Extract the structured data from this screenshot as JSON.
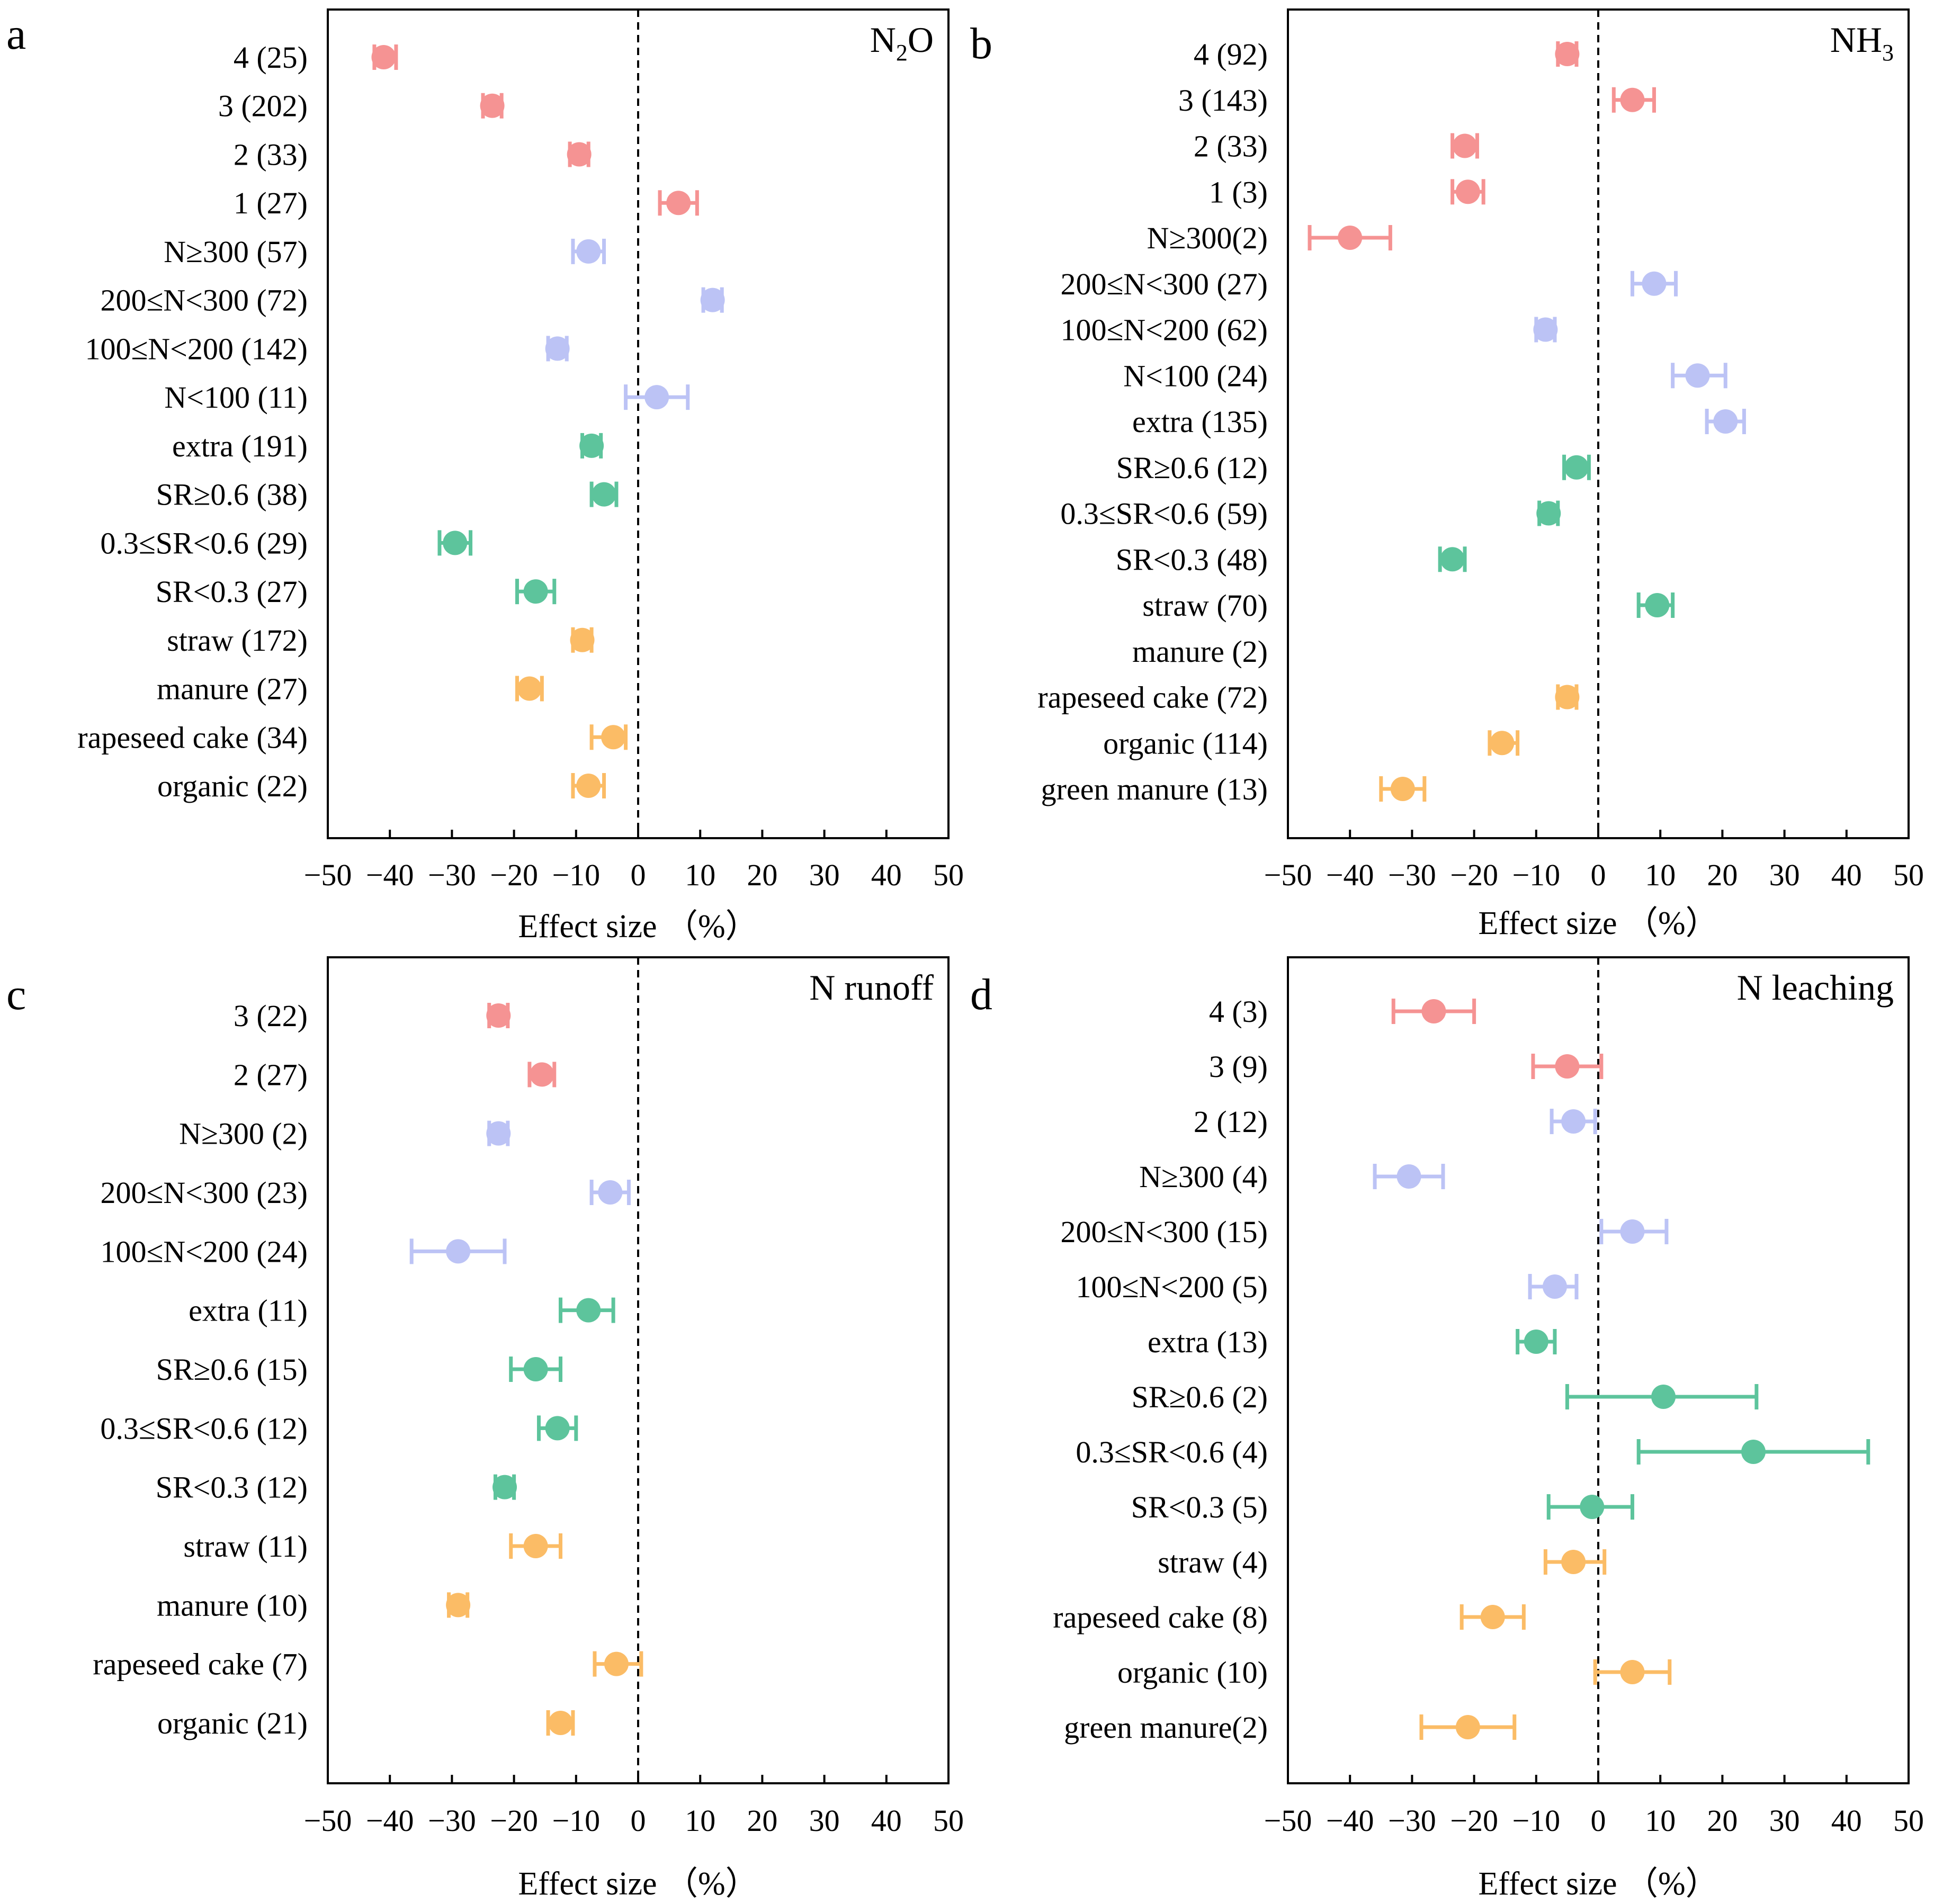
{
  "figure": {
    "colors": {
      "group1": "#f59393",
      "group2": "#bcc3f5",
      "group3": "#5dc49c",
      "group4": "#fbbc66",
      "axis": "#000000"
    }
  },
  "chart_data": [
    {
      "type": "forest",
      "panel": "a",
      "title": "N₂O",
      "title_parts": {
        "main": "N",
        "sub": "2",
        "tail": "O"
      },
      "xlabel": "Effect size （%）",
      "xlim": [
        -50,
        50
      ],
      "xticks": [
        "−50",
        "−40",
        "−30",
        "−20",
        "−10",
        "0",
        "10",
        "20",
        "30",
        "40",
        "50"
      ],
      "xtick_values": [
        -50,
        -40,
        -30,
        -20,
        -10,
        0,
        10,
        20,
        30,
        40,
        50
      ],
      "reference_line": 0,
      "rows": [
        {
          "label": "4 (25)",
          "group": 1,
          "mean": -41,
          "lo": -42.5,
          "hi": -39
        },
        {
          "label": "3 (202)",
          "group": 1,
          "mean": -23.5,
          "lo": -25,
          "hi": -22
        },
        {
          "label": "2 (33)",
          "group": 1,
          "mean": -9.5,
          "lo": -11,
          "hi": -8
        },
        {
          "label": "1 (27)",
          "group": 1,
          "mean": 6.5,
          "lo": 3.5,
          "hi": 9.5
        },
        {
          "label": "N≥300 (57)",
          "group": 2,
          "mean": -8,
          "lo": -10.5,
          "hi": -5.5
        },
        {
          "label": "200≤N<300 (72)",
          "group": 2,
          "mean": 12,
          "lo": 10.5,
          "hi": 13.5
        },
        {
          "label": "100≤N<200 (142)",
          "group": 2,
          "mean": -13,
          "lo": -14.5,
          "hi": -11.5
        },
        {
          "label": "N<100 (11)",
          "group": 2,
          "mean": 3,
          "lo": -2,
          "hi": 8
        },
        {
          "label": "extra (191)",
          "group": 3,
          "mean": -7.5,
          "lo": -9,
          "hi": -6
        },
        {
          "label": "SR≥0.6 (38)",
          "group": 3,
          "mean": -5.5,
          "lo": -7.5,
          "hi": -3.5
        },
        {
          "label": "0.3≤SR<0.6 (29)",
          "group": 3,
          "mean": -29.5,
          "lo": -32,
          "hi": -27
        },
        {
          "label": "SR<0.3 (27)",
          "group": 3,
          "mean": -16.5,
          "lo": -19.5,
          "hi": -13.5
        },
        {
          "label": "straw (172)",
          "group": 4,
          "mean": -9,
          "lo": -10.5,
          "hi": -7.5
        },
        {
          "label": "manure (27)",
          "group": 4,
          "mean": -17.5,
          "lo": -19.5,
          "hi": -15.5
        },
        {
          "label": "rapeseed cake (34)",
          "group": 4,
          "mean": -4,
          "lo": -7.5,
          "hi": -2
        },
        {
          "label": "organic (22)",
          "group": 4,
          "mean": -8,
          "lo": -10.5,
          "hi": -5.5
        }
      ]
    },
    {
      "type": "forest",
      "panel": "b",
      "title": "NH₃",
      "title_parts": {
        "main": "NH",
        "sub": "3",
        "tail": ""
      },
      "xlabel": "Effect size （%）",
      "xlim": [
        -50,
        50
      ],
      "xticks": [
        "−50",
        "−40",
        "−30",
        "−20",
        "−10",
        "0",
        "10",
        "20",
        "30",
        "40",
        "50"
      ],
      "xtick_values": [
        -50,
        -40,
        -30,
        -20,
        -10,
        0,
        10,
        20,
        30,
        40,
        50
      ],
      "reference_line": 0,
      "rows": [
        {
          "label": "4 (92)",
          "group": 1,
          "mean": -5,
          "lo": -6.5,
          "hi": -3.5
        },
        {
          "label": "3 (143)",
          "group": 1,
          "mean": 5.5,
          "lo": 2.5,
          "hi": 9
        },
        {
          "label": "2 (33)",
          "group": 1,
          "mean": -21.5,
          "lo": -23.5,
          "hi": -19.5
        },
        {
          "label": "1 (3)",
          "group": 1,
          "mean": -21,
          "lo": -23.5,
          "hi": -18.5
        },
        {
          "label": "N≥300(2)",
          "group": 1,
          "mean": -40,
          "lo": -46.5,
          "hi": -33.5
        },
        {
          "label": "200≤N<300 (27)",
          "group": 2,
          "mean": 9,
          "lo": 5.5,
          "hi": 12.5
        },
        {
          "label": "100≤N<200 (62)",
          "group": 2,
          "mean": -8.5,
          "lo": -10,
          "hi": -7
        },
        {
          "label": "N<100 (24)",
          "group": 2,
          "mean": 16,
          "lo": 12,
          "hi": 20.5
        },
        {
          "label": "extra (135)",
          "group": 2,
          "mean": 20.5,
          "lo": 17.5,
          "hi": 23.5
        },
        {
          "label": "SR≥0.6 (12)",
          "group": 3,
          "mean": -3.5,
          "lo": -5.5,
          "hi": -1.5
        },
        {
          "label": "0.3≤SR<0.6 (59)",
          "group": 3,
          "mean": -8,
          "lo": -9.5,
          "hi": -6.5
        },
        {
          "label": "SR<0.3 (48)",
          "group": 3,
          "mean": -23.5,
          "lo": -25.5,
          "hi": -21.5
        },
        {
          "label": "straw (70)",
          "group": 3,
          "mean": 9.5,
          "lo": 6.5,
          "hi": 12
        },
        {
          "label": "manure (2)",
          "group": 0,
          "mean": null,
          "lo": null,
          "hi": null
        },
        {
          "label": "rapeseed cake (72)",
          "group": 4,
          "mean": -5,
          "lo": -6.5,
          "hi": -3.5
        },
        {
          "label": "organic (114)",
          "group": 4,
          "mean": -15.5,
          "lo": -17.5,
          "hi": -13
        },
        {
          "label": "green manure (13)",
          "group": 4,
          "mean": -31.5,
          "lo": -35,
          "hi": -28
        }
      ]
    },
    {
      "type": "forest",
      "panel": "c",
      "title": "N runoff",
      "title_parts": {
        "main": "N runoff",
        "sub": "",
        "tail": ""
      },
      "xlabel": "Effect size （%）",
      "xlim": [
        -50,
        50
      ],
      "xticks": [
        "−50",
        "−40",
        "−30",
        "−20",
        "−10",
        "0",
        "10",
        "20",
        "30",
        "40",
        "50"
      ],
      "xtick_values": [
        -50,
        -40,
        -30,
        -20,
        -10,
        0,
        10,
        20,
        30,
        40,
        50
      ],
      "reference_line": 0,
      "rows": [
        {
          "label": "3 (22)",
          "group": 1,
          "mean": -22.5,
          "lo": -24,
          "hi": -21
        },
        {
          "label": "2 (27)",
          "group": 1,
          "mean": -15.5,
          "lo": -17.5,
          "hi": -13.5
        },
        {
          "label": "N≥300 (2)",
          "group": 2,
          "mean": -22.5,
          "lo": -24,
          "hi": -21
        },
        {
          "label": "200≤N<300 (23)",
          "group": 2,
          "mean": -4.5,
          "lo": -7.5,
          "hi": -1.5
        },
        {
          "label": "100≤N<200 (24)",
          "group": 2,
          "mean": -29,
          "lo": -36.5,
          "hi": -21.5
        },
        {
          "label": "extra (11)",
          "group": 3,
          "mean": -8,
          "lo": -12.5,
          "hi": -4
        },
        {
          "label": "SR≥0.6 (15)",
          "group": 3,
          "mean": -16.5,
          "lo": -20.5,
          "hi": -12.5
        },
        {
          "label": "0.3≤SR<0.6 (12)",
          "group": 3,
          "mean": -13,
          "lo": -16,
          "hi": -10
        },
        {
          "label": "SR<0.3 (12)",
          "group": 3,
          "mean": -21.5,
          "lo": -23,
          "hi": -20
        },
        {
          "label": "straw (11)",
          "group": 4,
          "mean": -16.5,
          "lo": -20.5,
          "hi": -12.5
        },
        {
          "label": "manure (10)",
          "group": 4,
          "mean": -29,
          "lo": -30.5,
          "hi": -27.5
        },
        {
          "label": "rapeseed cake (7)",
          "group": 4,
          "mean": -3.5,
          "lo": -7,
          "hi": 0.5
        },
        {
          "label": "organic (21)",
          "group": 4,
          "mean": -12.5,
          "lo": -14.5,
          "hi": -10.5
        }
      ]
    },
    {
      "type": "forest",
      "panel": "d",
      "title": "N leaching",
      "title_parts": {
        "main": "N leaching",
        "sub": "",
        "tail": ""
      },
      "xlabel": "Effect size （%）",
      "xlim": [
        -50,
        50
      ],
      "xticks": [
        "−50",
        "−40",
        "−30",
        "−20",
        "−10",
        "0",
        "10",
        "20",
        "30",
        "40",
        "50"
      ],
      "xtick_values": [
        -50,
        -40,
        -30,
        -20,
        -10,
        0,
        10,
        20,
        30,
        40,
        50
      ],
      "reference_line": 0,
      "rows": [
        {
          "label": "4 (3)",
          "group": 1,
          "mean": -26.5,
          "lo": -33,
          "hi": -20
        },
        {
          "label": "3 (9)",
          "group": 1,
          "mean": -5,
          "lo": -10.5,
          "hi": 0.5
        },
        {
          "label": "2 (12)",
          "group": 2,
          "mean": -4,
          "lo": -7.5,
          "hi": -0.5
        },
        {
          "label": "N≥300 (4)",
          "group": 2,
          "mean": -30.5,
          "lo": -36,
          "hi": -25
        },
        {
          "label": "200≤N<300 (15)",
          "group": 2,
          "mean": 5.5,
          "lo": 0.5,
          "hi": 11
        },
        {
          "label": "100≤N<200 (5)",
          "group": 2,
          "mean": -7,
          "lo": -11,
          "hi": -3.5
        },
        {
          "label": "extra (13)",
          "group": 3,
          "mean": -10,
          "lo": -13,
          "hi": -7
        },
        {
          "label": "SR≥0.6 (2)",
          "group": 3,
          "mean": 10.5,
          "lo": -5,
          "hi": 25.5
        },
        {
          "label": "0.3≤SR<0.6 (4)",
          "group": 3,
          "mean": 25,
          "lo": 6.5,
          "hi": 43.5
        },
        {
          "label": "SR<0.3 (5)",
          "group": 3,
          "mean": -1,
          "lo": -8,
          "hi": 5.5
        },
        {
          "label": "straw (4)",
          "group": 4,
          "mean": -4,
          "lo": -8.5,
          "hi": 1
        },
        {
          "label": "rapeseed cake (8)",
          "group": 4,
          "mean": -17,
          "lo": -22,
          "hi": -12
        },
        {
          "label": "organic (10)",
          "group": 4,
          "mean": 5.5,
          "lo": -0.5,
          "hi": 11.5
        },
        {
          "label": "green manure(2)",
          "group": 4,
          "mean": -21,
          "lo": -28.5,
          "hi": -13.5
        }
      ]
    }
  ]
}
